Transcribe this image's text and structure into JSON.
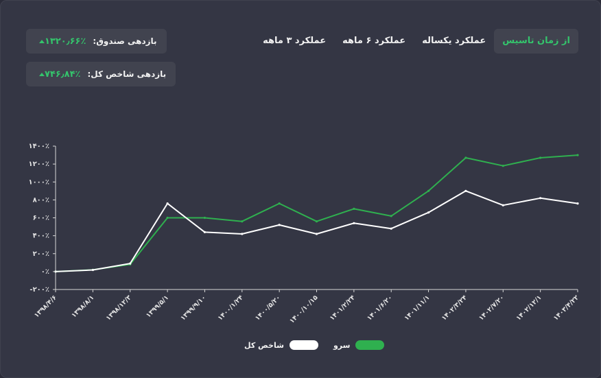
{
  "tabs": [
    "از زمان تاسیس",
    "عملکرد یکساله",
    "عملکرد ۶ ماهه",
    "عملکرد ۳ ماهه"
  ],
  "active_tab": 0,
  "stats": {
    "fund_label": "بازدهی صندوق:",
    "fund_value": "۱۳۲۰٫۶۶٪",
    "index_label": "بازدهی شاخص کل:",
    "index_value": "۷۴۶٫۸۴٪"
  },
  "colors": {
    "fund": "#2fb04f",
    "index": "#ffffff",
    "accent": "#34c46c"
  },
  "chart_data": {
    "type": "line",
    "title": "",
    "xlabel": "",
    "ylabel": "",
    "ylim": [
      -200,
      1400
    ],
    "y_ticks": [
      -200,
      0,
      200,
      400,
      600,
      800,
      1000,
      1200,
      1400
    ],
    "y_tick_labels": [
      "-۲۰۰٪",
      "۰٪",
      "۲۰۰٪",
      "۴۰۰٪",
      "۶۰۰٪",
      "۸۰۰٪",
      "۱۰۰۰٪",
      "۱۲۰۰٪",
      "۱۴۰۰٪"
    ],
    "x_tick_labels": [
      "۱۳۹۸/۴/۶",
      "۱۳۹۸/۸/۱",
      "۱۳۹۸/۱۲/۳",
      "۱۳۹۹/۵/۱",
      "۱۳۹۹/۹/۱۰",
      "۱۴۰۰/۱/۲۴",
      "۱۴۰۰/۵/۲۰",
      "۱۴۰۰/۱۰/۱۵",
      "۱۴۰۱/۲/۲۴",
      "۱۴۰۱/۶/۲۰",
      "۱۴۰۱/۱۱/۱",
      "۱۴۰۲/۳/۲۴",
      "۱۴۰۲/۷/۲۰",
      "۱۴۰۲/۱۲/۱",
      "۱۴۰۳/۴/۲۲"
    ],
    "x": [
      "۱۳۹۸/۴/۶",
      "۱۳۹۸/۸/۱",
      "۱۳۹۸/۱۲/۳",
      "۱۳۹۹/۵/۱",
      "۱۳۹۹/۹/۱۰",
      "۱۴۰۰/۱/۲۴",
      "۱۴۰۰/۵/۲۰",
      "۱۴۰۰/۱۰/۱۵",
      "۱۴۰۱/۲/۲۴",
      "۱۴۰۱/۶/۲۰",
      "۱۴۰۱/۱۱/۱",
      "۱۴۰۲/۳/۲۴",
      "۱۴۰۲/۷/۲۰",
      "۱۴۰۲/۱۲/۱",
      "۱۴۰۳/۴/۲۲"
    ],
    "series": [
      {
        "name": "سرو",
        "color": "#2fb04f",
        "values": [
          0,
          20,
          80,
          600,
          600,
          560,
          760,
          560,
          700,
          620,
          900,
          1270,
          1180,
          1270,
          1300
        ]
      },
      {
        "name": "شاخص کل",
        "color": "#ffffff",
        "values": [
          0,
          18,
          90,
          760,
          440,
          420,
          520,
          420,
          540,
          480,
          660,
          900,
          740,
          820,
          760
        ]
      }
    ],
    "grid": false,
    "legend_position": "bottom-center"
  }
}
